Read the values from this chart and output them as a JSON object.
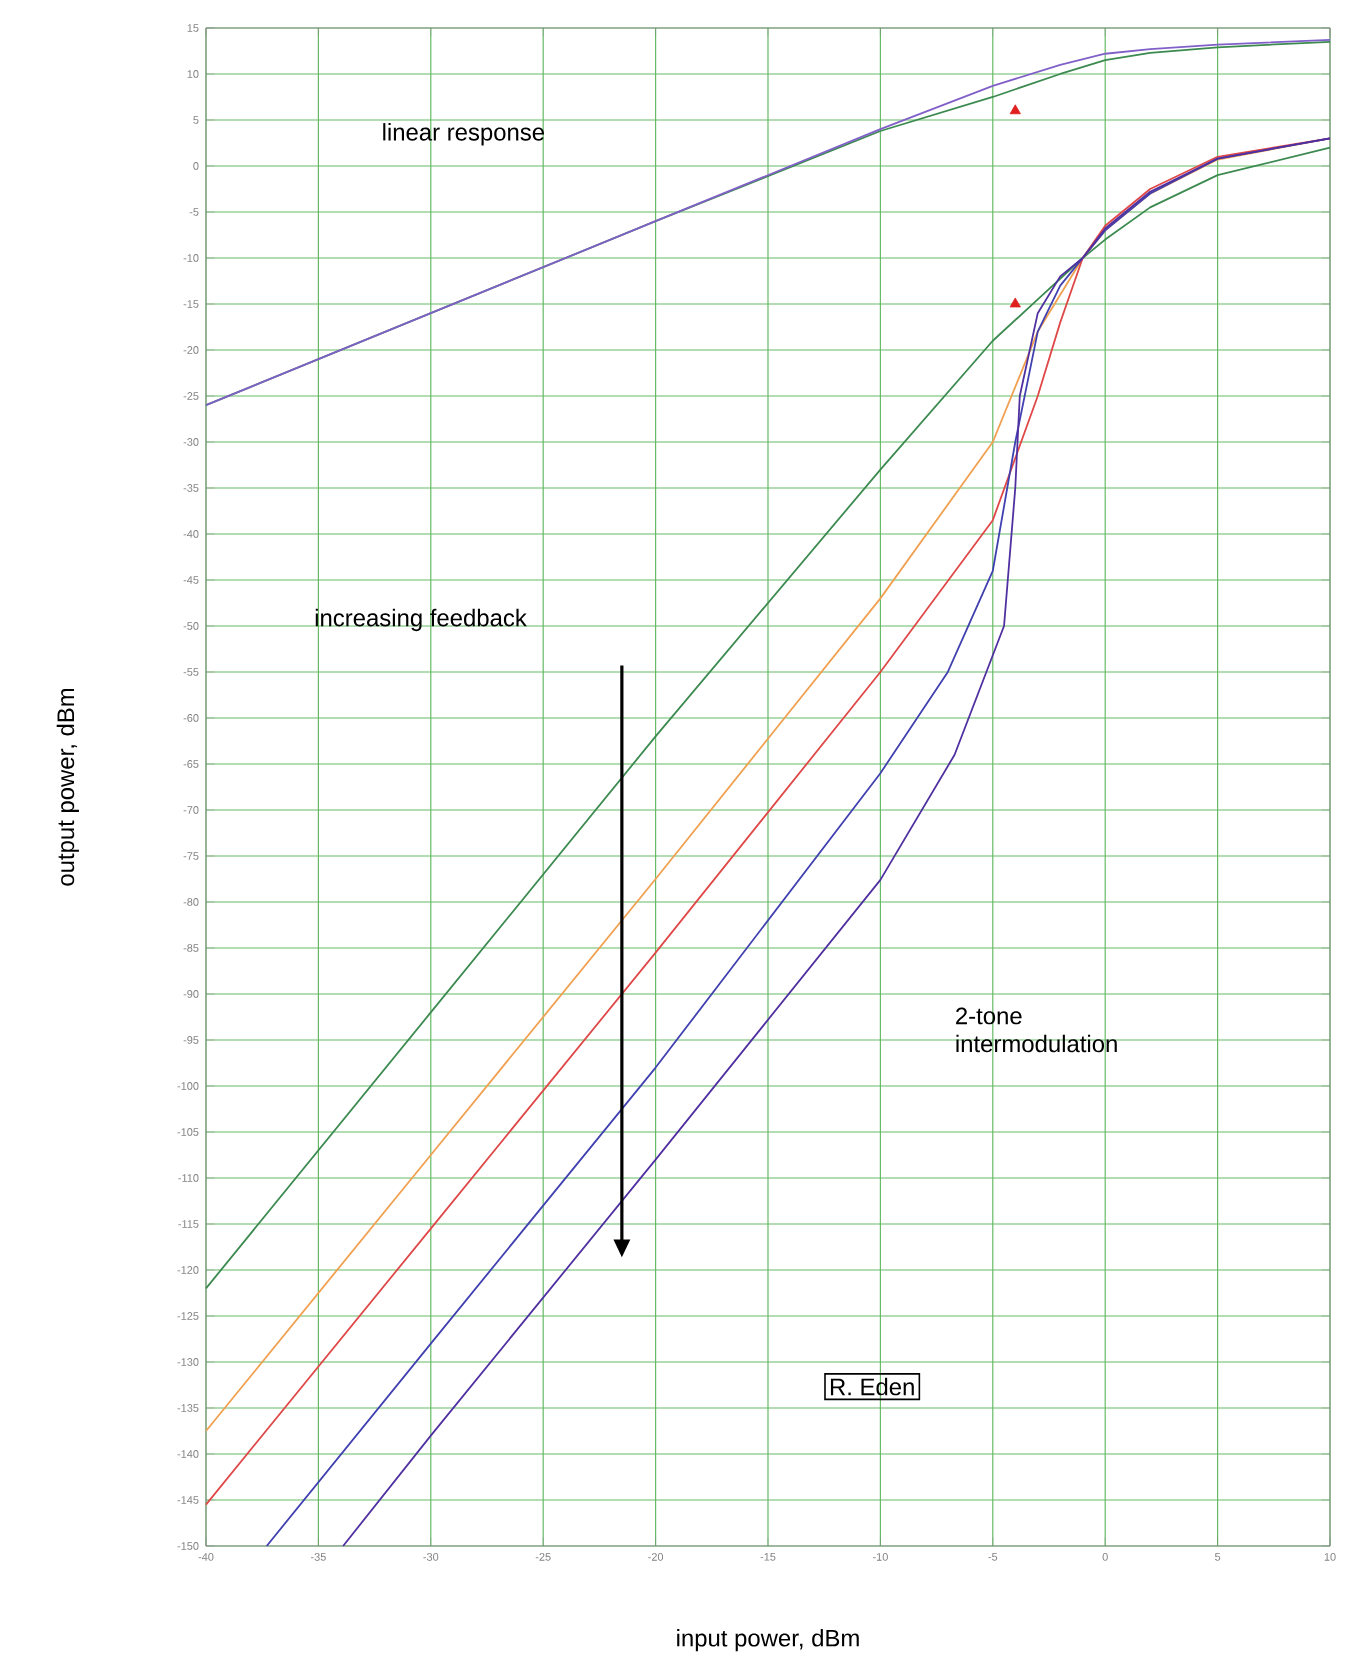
{
  "chart_data": {
    "type": "line",
    "xlabel": "input power, dBm",
    "ylabel": "output power, dBm",
    "annotations": [
      "linear response",
      "increasing feedback",
      "2-tone intermodulation",
      "R. Eden"
    ],
    "xlim": [
      -40,
      10
    ],
    "ylim": [
      -150,
      15
    ],
    "xticks": [
      -40,
      -35,
      -30,
      -25,
      -20,
      -15,
      -10,
      -5,
      0,
      5,
      10
    ],
    "yticks": [
      -150,
      -145,
      -140,
      -135,
      -130,
      -125,
      -120,
      -115,
      -110,
      -105,
      -100,
      -95,
      -90,
      -85,
      -80,
      -75,
      -70,
      -65,
      -60,
      -55,
      -50,
      -45,
      -40,
      -35,
      -30,
      -25,
      -20,
      -15,
      -10,
      -5,
      0,
      5,
      10,
      15
    ],
    "grid": true,
    "line_style": "solid",
    "series": [
      {
        "color": "#3c8a50",
        "x": [
          -40,
          -30,
          -20,
          -10,
          -5,
          -2,
          0,
          2,
          5,
          10
        ],
        "values": [
          -26,
          -16,
          -6,
          3.8,
          7.5,
          10,
          11.5,
          12.3,
          12.9,
          13.5
        ]
      },
      {
        "color": "#8060c8",
        "x": [
          -40,
          -30,
          -20,
          -10,
          -5,
          -2,
          0,
          2,
          5,
          10
        ],
        "values": [
          -26,
          -16,
          -6,
          4,
          8.7,
          11,
          12.2,
          12.7,
          13.2,
          13.7
        ]
      },
      {
        "color": "#3c8a50",
        "x": [
          -40,
          -30,
          -20,
          -10,
          -5,
          -3,
          -1,
          0,
          2,
          5,
          10
        ],
        "values": [
          -122,
          -92,
          -62,
          -33,
          -19,
          -14.5,
          -10,
          -8,
          -4.5,
          -1,
          2
        ]
      },
      {
        "color": "#f0a050",
        "x": [
          -40,
          -30,
          -20,
          -10,
          -5,
          -3,
          -1,
          0,
          2,
          5,
          10
        ],
        "values": [
          -137.5,
          -107.5,
          -77.5,
          -47,
          -30,
          -18,
          -10,
          -7,
          -3,
          0.7,
          3
        ]
      },
      {
        "color": "#e04848",
        "x": [
          -40,
          -30,
          -20,
          -10,
          -5,
          -3,
          -2,
          -1,
          0,
          2,
          5,
          10
        ],
        "values": [
          -145.5,
          -115.5,
          -85.5,
          -55,
          -38.5,
          -25,
          -17,
          -10,
          -6.5,
          -2.5,
          1,
          3
        ]
      },
      {
        "color": "#4040b0",
        "x": [
          -37.3,
          -30,
          -20,
          -10,
          -7,
          -5,
          -4,
          -3,
          -2,
          -1,
          0,
          2,
          5,
          10
        ],
        "values": [
          -150,
          -128,
          -98,
          -66,
          -55,
          -44,
          -30,
          -18,
          -13,
          -10,
          -7,
          -3,
          0.8,
          3
        ]
      },
      {
        "color": "#5030a0",
        "x": [
          -33.9,
          -30,
          -20,
          -10,
          -6.7,
          -4.5,
          -4,
          -3.8,
          -3,
          -2,
          -1,
          0,
          2,
          5,
          10
        ],
        "values": [
          -150,
          -138,
          -108,
          -77.6,
          -64,
          -50,
          -35,
          -25,
          -16,
          -12,
          -10,
          -6.8,
          -2.8,
          0.8,
          3
        ]
      },
      {
        "type": "scatter",
        "marker": "triangle",
        "color": "#e02020",
        "x": [
          -4
        ],
        "values": [
          6
        ]
      },
      {
        "type": "scatter",
        "marker": "triangle",
        "color": "#e02020",
        "x": [
          -4
        ],
        "values": [
          -15
        ]
      }
    ]
  }
}
